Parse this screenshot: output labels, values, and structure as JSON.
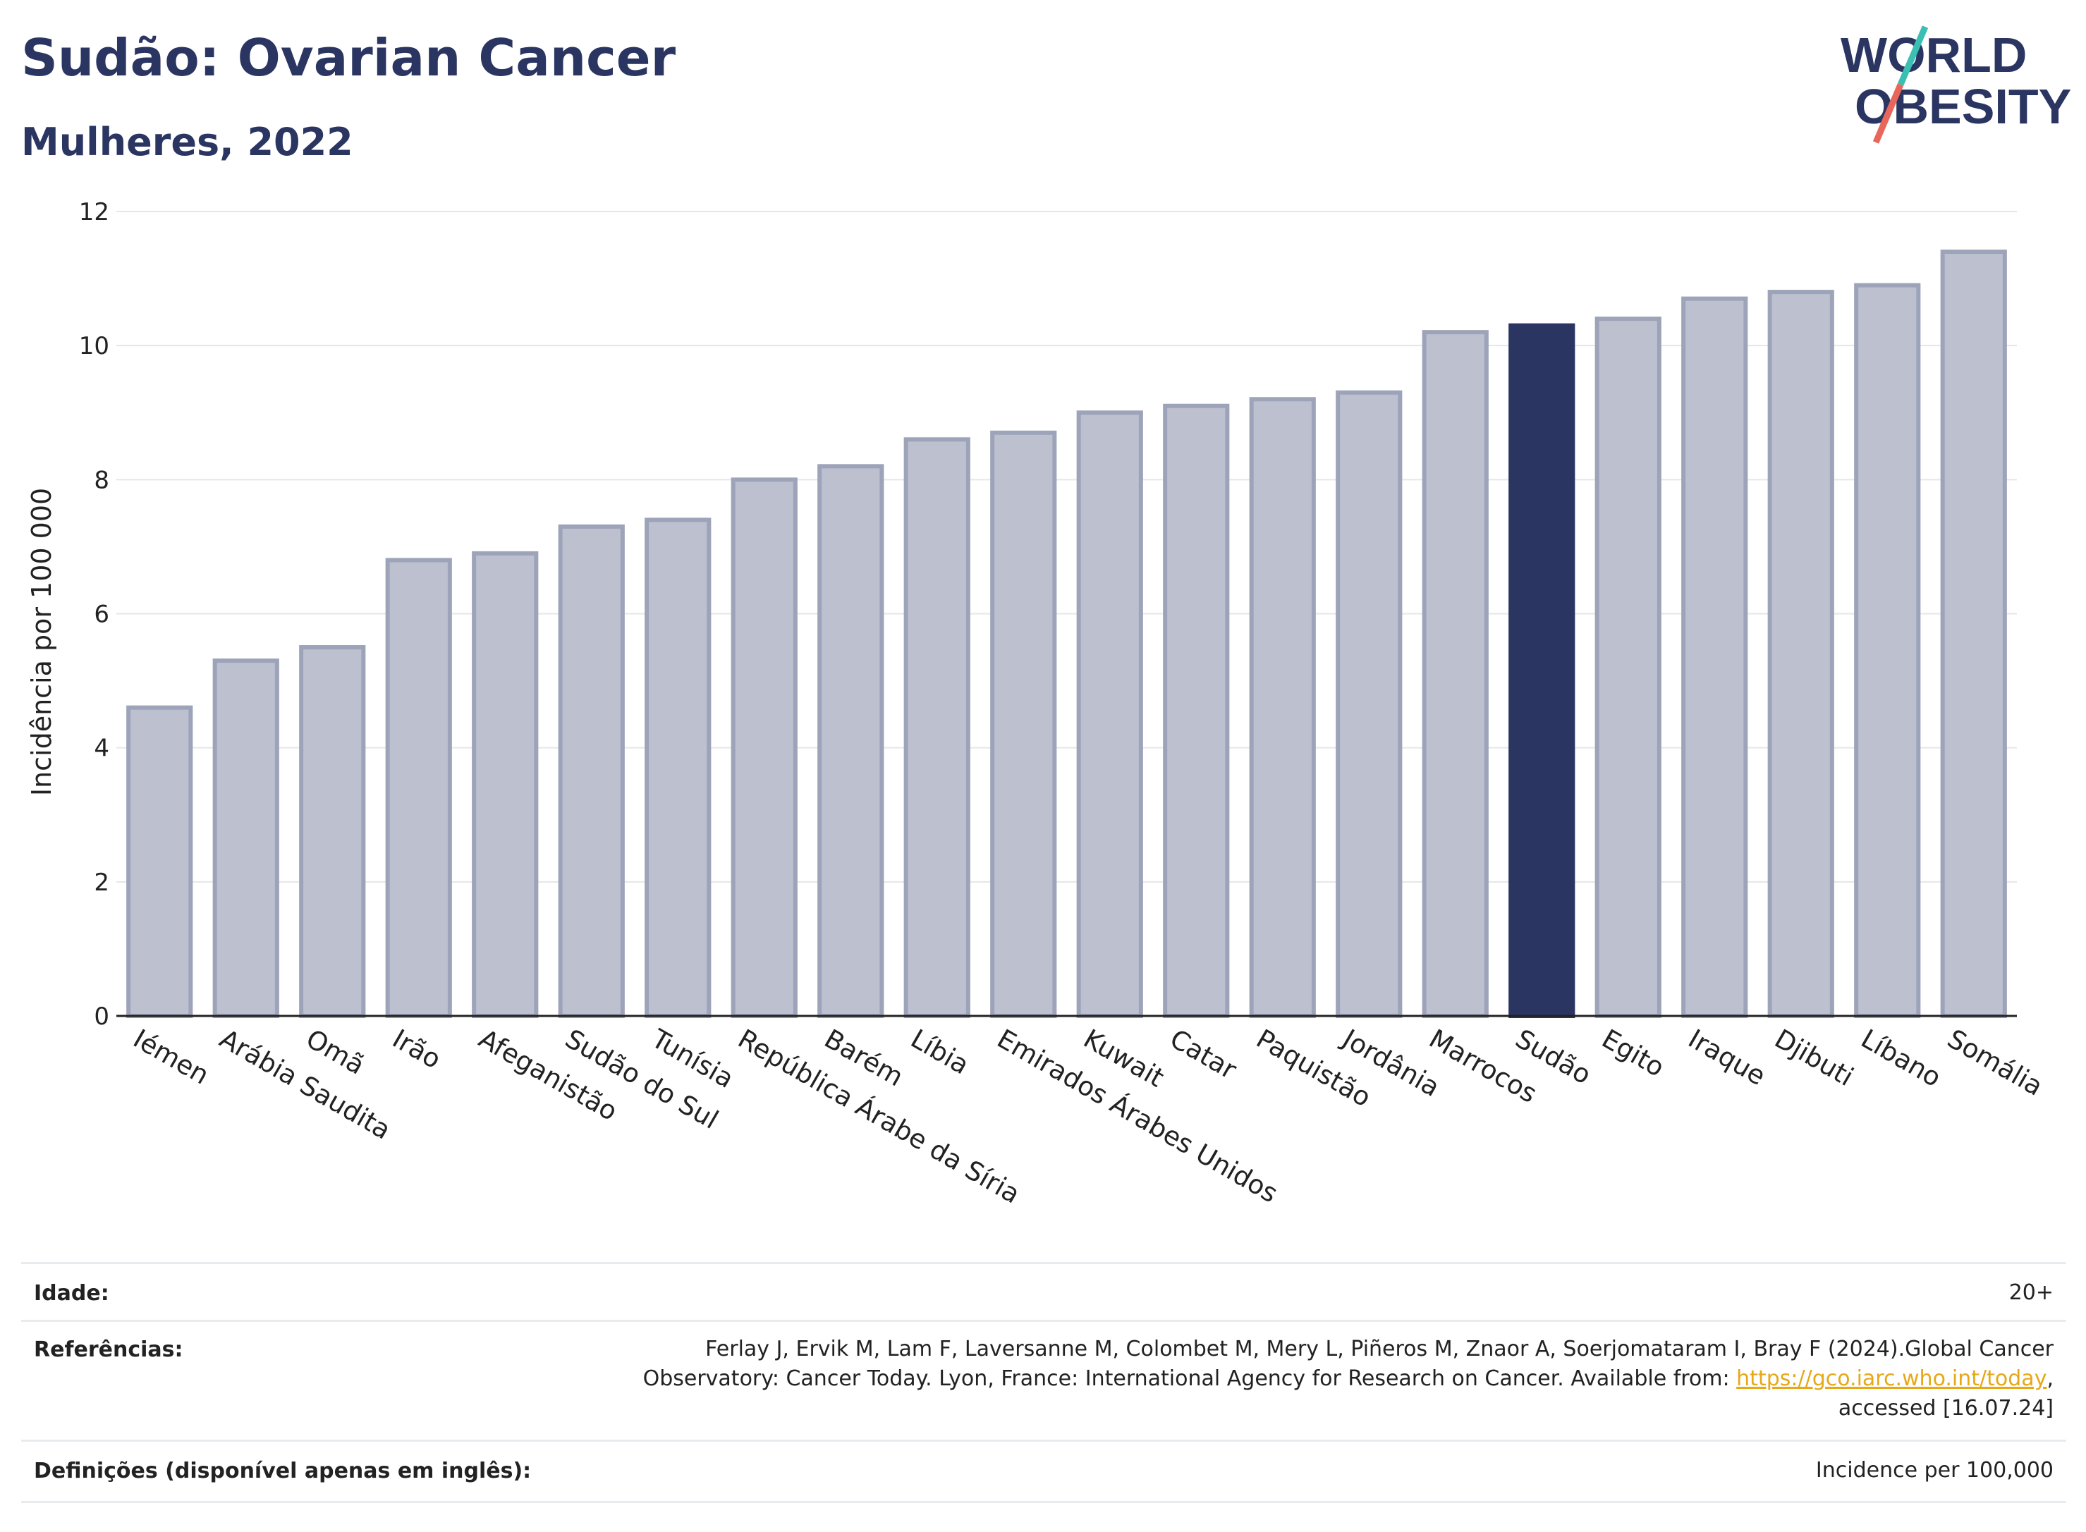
{
  "header": {
    "title": "Sudão: Ovarian Cancer",
    "subtitle": "Mulheres, 2022",
    "logo_line1": "WORLD",
    "logo_line2": "OBESITY"
  },
  "chart_data": {
    "type": "bar",
    "ylabel": "Incidência por 100 000",
    "ylim": [
      0,
      12
    ],
    "yticks": [
      0,
      2,
      4,
      6,
      8,
      10,
      12
    ],
    "categories": [
      "Iémen",
      "Arábia Saudita",
      "Omã",
      "Irão",
      "Afeganistão",
      "Sudão do Sul",
      "Tunísia",
      "República Árabe da Síria",
      "Barém",
      "Líbia",
      "Emirados Árabes Unidos",
      "Kuwait",
      "Catar",
      "Paquistão",
      "Jordânia",
      "Marrocos",
      "Sudão",
      "Egito",
      "Iraque",
      "Djibuti",
      "Líbano",
      "Somália"
    ],
    "values": [
      4.6,
      5.3,
      5.5,
      6.8,
      6.9,
      7.3,
      7.4,
      8.0,
      8.2,
      8.6,
      8.7,
      9.0,
      9.1,
      9.2,
      9.3,
      10.2,
      10.3,
      10.4,
      10.7,
      10.8,
      10.9,
      11.4
    ],
    "highlight": "Sudão",
    "colors": {
      "bar": "#bcc0cf",
      "bar_border": "#9da3b8",
      "highlight": "#2b3561"
    },
    "grid": true
  },
  "footer": {
    "age_label": "Idade:",
    "age_value": "20+",
    "ref_label": "Referências:",
    "ref_line1": "Ferlay J, Ervik M, Lam F, Laversanne M, Colombet M, Mery L, Piñeros M, Znaor A, Soerjomataram I, Bray F (2024).Global Cancer",
    "ref_line2_pre": "Observatory: Cancer Today. Lyon, France: International Agency for Research on Cancer. Available from: ",
    "ref_link": "https://gco.iarc.who.int/today",
    "ref_line2_post": ",",
    "ref_line3": "accessed [16.07.24]",
    "def_label": "Definições (disponível apenas em inglês):",
    "def_value": "Incidence per 100,000"
  }
}
